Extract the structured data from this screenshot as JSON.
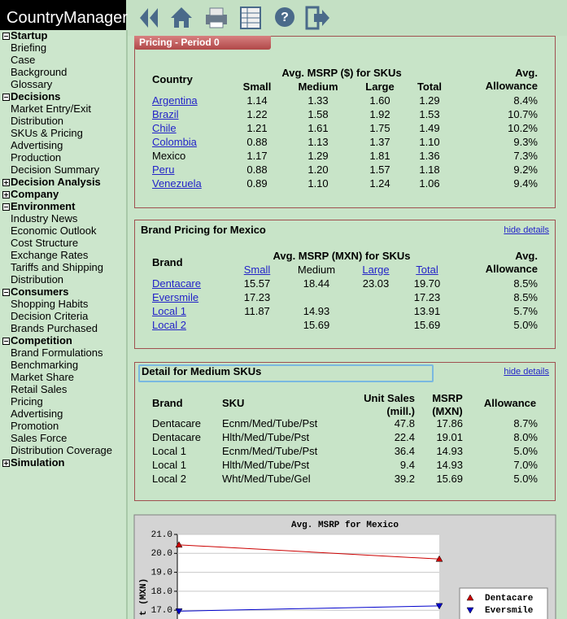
{
  "header": {
    "app_title": "CountryManager"
  },
  "sidebar": {
    "items": [
      {
        "label": "Startup",
        "expanded": true
      },
      {
        "label": "Briefing"
      },
      {
        "label": "Case"
      },
      {
        "label": "Background"
      },
      {
        "label": "Glossary"
      },
      {
        "label": "Decisions",
        "expanded": true
      },
      {
        "label": "Market Entry/Exit"
      },
      {
        "label": "Distribution"
      },
      {
        "label": "SKUs & Pricing"
      },
      {
        "label": "Advertising"
      },
      {
        "label": "Production"
      },
      {
        "label": "Decision Summary"
      },
      {
        "label": "Decision Analysis",
        "expanded": false
      },
      {
        "label": "Company",
        "expanded": false
      },
      {
        "label": "Environment",
        "expanded": true
      },
      {
        "label": "Industry News"
      },
      {
        "label": "Economic Outlook"
      },
      {
        "label": "Cost Structure"
      },
      {
        "label": "Exchange Rates"
      },
      {
        "label": "Tariffs and Shipping"
      },
      {
        "label": "Distribution"
      },
      {
        "label": "Consumers",
        "expanded": true
      },
      {
        "label": "Shopping Habits"
      },
      {
        "label": "Decision Criteria"
      },
      {
        "label": "Brands Purchased"
      },
      {
        "label": "Competition",
        "expanded": true
      },
      {
        "label": "Brand Formulations"
      },
      {
        "label": "Benchmarking"
      },
      {
        "label": "Market Share"
      },
      {
        "label": "Retail Sales"
      },
      {
        "label": "Pricing"
      },
      {
        "label": "Advertising"
      },
      {
        "label": "Promotion"
      },
      {
        "label": "Sales Force"
      },
      {
        "label": "Distribution Coverage"
      },
      {
        "label": "Simulation",
        "expanded": false
      }
    ]
  },
  "pricing_panel": {
    "tab": "Pricing - Period 0",
    "group_header": "Avg. MSRP ($) for SKUs",
    "columns": [
      "Country",
      "Small",
      "Medium",
      "Large",
      "Total",
      "Avg. Allowance"
    ],
    "rows": [
      {
        "link": true,
        "cells": [
          "Argentina",
          "1.14",
          "1.33",
          "1.60",
          "1.29",
          "8.4%"
        ]
      },
      {
        "link": true,
        "cells": [
          "Brazil",
          "1.22",
          "1.58",
          "1.92",
          "1.53",
          "10.7%"
        ]
      },
      {
        "link": true,
        "cells": [
          "Chile",
          "1.21",
          "1.61",
          "1.75",
          "1.49",
          "10.2%"
        ]
      },
      {
        "link": true,
        "cells": [
          "Colombia",
          "0.88",
          "1.13",
          "1.37",
          "1.10",
          "9.3%"
        ]
      },
      {
        "link": false,
        "cells": [
          "Mexico",
          "1.17",
          "1.29",
          "1.81",
          "1.36",
          "7.3%"
        ]
      },
      {
        "link": true,
        "cells": [
          "Peru",
          "0.88",
          "1.20",
          "1.57",
          "1.18",
          "9.2%"
        ]
      },
      {
        "link": true,
        "cells": [
          "Venezuela",
          "0.89",
          "1.10",
          "1.24",
          "1.06",
          "9.4%"
        ]
      }
    ]
  },
  "brand_panel": {
    "title": "Brand Pricing for Mexico",
    "toggle": "hide details",
    "group_header": "Avg. MSRP (MXN) for SKUs",
    "columns": [
      "Brand",
      "Small",
      "Medium",
      "Large",
      "Total",
      "Avg. Allowance"
    ],
    "rows": [
      [
        "Dentacare",
        "15.57",
        "18.44",
        "23.03",
        "19.70",
        "8.5%"
      ],
      [
        "Eversmile",
        "17.23",
        null,
        null,
        "17.23",
        "8.5%"
      ],
      [
        "Local 1",
        "11.87",
        "14.93",
        null,
        "13.91",
        "5.7%"
      ],
      [
        "Local 2",
        null,
        "15.69",
        null,
        "15.69",
        "5.0%"
      ]
    ]
  },
  "detail_panel": {
    "title": "Detail for Medium SKUs",
    "toggle": "hide details",
    "columns": [
      "Brand",
      "SKU",
      "Unit Sales (mill.)",
      "MSRP (MXN)",
      "Allowance"
    ],
    "rows": [
      [
        "Dentacare",
        "Ecnm/Med/Tube/Pst",
        "47.8",
        "17.86",
        "8.7%"
      ],
      [
        "Dentacare",
        "Hlth/Med/Tube/Pst",
        "22.4",
        "19.01",
        "8.0%"
      ],
      [
        "Local 1",
        "Ecnm/Med/Tube/Pst",
        "36.4",
        "14.93",
        "5.0%"
      ],
      [
        "Local 1",
        "Hlth/Med/Tube/Pst",
        "9.4",
        "14.93",
        "7.0%"
      ],
      [
        "Local 2",
        "Wht/Med/Tube/Gel",
        "39.2",
        "15.69",
        "5.0%"
      ]
    ]
  },
  "chart_data": {
    "type": "line",
    "title": "Avg. MSRP for Mexico",
    "y_label": "t (MXN)",
    "categories": [
      null,
      null
    ],
    "series": [
      {
        "name": "Dentacare",
        "color": "#cc0000",
        "marker": "triangle-up",
        "values": [
          20.45,
          19.7
        ]
      },
      {
        "name": "Eversmile",
        "color": "#0000cc",
        "marker": "triangle-down",
        "values": [
          16.95,
          17.23
        ]
      }
    ],
    "ylim": [
      16,
      21
    ],
    "yticks": [
      {
        "value": 17,
        "label": "17.0"
      },
      {
        "value": 18,
        "label": "18.0"
      },
      {
        "value": 19,
        "label": "19.0"
      },
      {
        "value": 20,
        "label": "20.0"
      },
      {
        "value": 21,
        "label": "21.0"
      }
    ],
    "grid": true,
    "legend": "lower right"
  }
}
